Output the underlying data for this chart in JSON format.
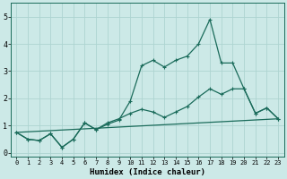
{
  "xlabel": "Humidex (Indice chaleur)",
  "xlim": [
    -0.5,
    23.5
  ],
  "ylim": [
    -0.15,
    5.5
  ],
  "xticks": [
    0,
    1,
    2,
    3,
    4,
    5,
    6,
    7,
    8,
    9,
    10,
    11,
    12,
    13,
    14,
    15,
    16,
    17,
    18,
    19,
    20,
    21,
    22,
    23
  ],
  "yticks": [
    0,
    1,
    2,
    3,
    4,
    5
  ],
  "background_color": "#cce9e7",
  "line_color": "#1a6b5a",
  "grid_color": "#add4d1",
  "line1_x": [
    0,
    1,
    2,
    3,
    4,
    5,
    6,
    7,
    8,
    9,
    10,
    11,
    12,
    13,
    14,
    15,
    16,
    17,
    18,
    19,
    20,
    21,
    22,
    23
  ],
  "line1_y": [
    0.75,
    0.5,
    0.45,
    0.7,
    0.2,
    0.5,
    1.1,
    0.85,
    1.05,
    1.2,
    1.9,
    3.2,
    3.4,
    3.15,
    3.4,
    3.55,
    4.0,
    4.9,
    3.3,
    3.3,
    2.35,
    1.45,
    1.65,
    1.25
  ],
  "line2_x": [
    0,
    1,
    2,
    3,
    4,
    5,
    6,
    7,
    8,
    9,
    10,
    11,
    12,
    13,
    14,
    15,
    16,
    17,
    18,
    19,
    20,
    21,
    22,
    23
  ],
  "line2_y": [
    0.75,
    0.5,
    0.45,
    0.7,
    0.2,
    0.5,
    1.1,
    0.85,
    1.1,
    1.25,
    1.45,
    1.6,
    1.5,
    1.3,
    1.5,
    1.7,
    2.05,
    2.35,
    2.15,
    2.35,
    2.35,
    1.45,
    1.65,
    1.25
  ],
  "line3_x": [
    0,
    23
  ],
  "line3_y": [
    0.75,
    1.25
  ]
}
